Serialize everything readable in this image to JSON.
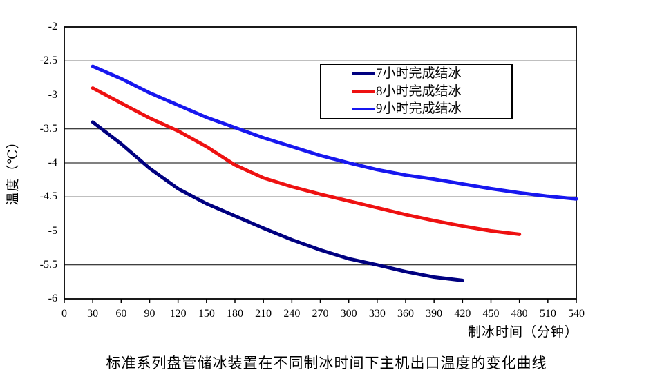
{
  "chart_data": {
    "type": "line",
    "title_caption": "标准系列盘管储冰装置在不同制冰时间下主机出口温度的变化曲线",
    "xlabel": "制冰时间（分钟）",
    "ylabel": "温度（℃）",
    "xlim": [
      0,
      540
    ],
    "ylim": [
      -6,
      -2
    ],
    "x_ticks": [
      0,
      30,
      60,
      90,
      120,
      150,
      180,
      210,
      240,
      270,
      300,
      330,
      360,
      390,
      420,
      450,
      480,
      510,
      540
    ],
    "y_ticks": [
      -2,
      -2.5,
      -3,
      -3.5,
      -4,
      -4.5,
      -5,
      -5.5,
      -6
    ],
    "y_tick_labels": [
      "-2",
      "-2.5",
      "-3",
      "-3.5",
      "-4",
      "-4.5",
      "-5",
      "-5.5",
      "-6"
    ],
    "grid": "horizontal",
    "legend_position": "top-right-inside",
    "axis_color": "#000000",
    "background_color": "#ffffff",
    "series": [
      {
        "name": "7小时完成结冰",
        "color": "#000080",
        "x": [
          30,
          60,
          90,
          120,
          150,
          180,
          210,
          240,
          270,
          300,
          330,
          360,
          390,
          420
        ],
        "values": [
          -3.4,
          -3.72,
          -4.08,
          -4.38,
          -4.6,
          -4.78,
          -4.96,
          -5.13,
          -5.28,
          -5.41,
          -5.5,
          -5.6,
          -5.68,
          -5.73
        ]
      },
      {
        "name": "8小时完成结冰",
        "color": "#EE1111",
        "x": [
          30,
          60,
          90,
          120,
          150,
          180,
          210,
          240,
          270,
          300,
          330,
          360,
          390,
          420,
          450,
          480
        ],
        "values": [
          -2.9,
          -3.12,
          -3.34,
          -3.53,
          -3.76,
          -4.03,
          -4.22,
          -4.35,
          -4.46,
          -4.56,
          -4.66,
          -4.76,
          -4.85,
          -4.93,
          -5.0,
          -5.05
        ]
      },
      {
        "name": "9小时完成结冰",
        "color": "#1717EF",
        "x": [
          30,
          60,
          90,
          120,
          150,
          180,
          210,
          240,
          270,
          300,
          330,
          360,
          390,
          420,
          450,
          480,
          510,
          540
        ],
        "values": [
          -2.58,
          -2.76,
          -2.97,
          -3.15,
          -3.33,
          -3.48,
          -3.63,
          -3.76,
          -3.89,
          -4.0,
          -4.1,
          -4.18,
          -4.24,
          -4.31,
          -4.38,
          -4.44,
          -4.49,
          -4.53
        ]
      }
    ]
  }
}
